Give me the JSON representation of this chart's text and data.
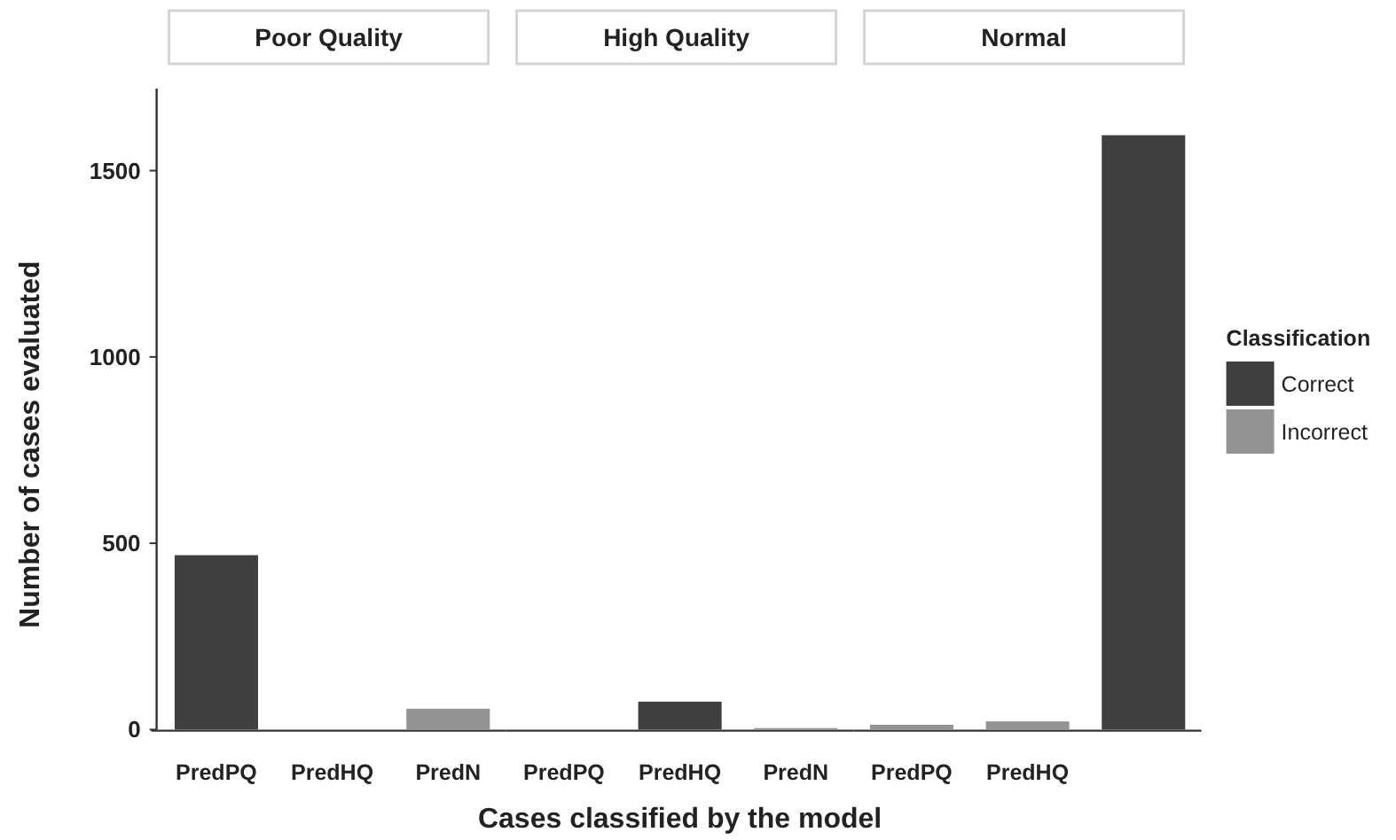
{
  "chart_data": [
    {
      "type": "bar",
      "title": "Poor Quality",
      "ylabel": "Number of cases evaluated",
      "categories": [
        "PredPQ",
        "PredHQ",
        "PredN"
      ],
      "series": [
        {
          "color": "#3f3f3f",
          "values": [
            468,
            null,
            null
          ]
        },
        {
          "color": "#939393",
          "values": [
            null,
            null,
            56
          ]
        }
      ],
      "ylim": [
        0,
        1720
      ],
      "yticks": [
        0,
        500,
        1000,
        1500
      ],
      "grid": false
    },
    {
      "type": "bar",
      "title": "High Quality",
      "xlabel": "Cases classified by the model",
      "categories": [
        "PredPQ",
        "PredHQ",
        "PredN"
      ],
      "series": [
        {
          "color": "#3f3f3f",
          "values": [
            null,
            75,
            null
          ]
        },
        {
          "color": "#939393",
          "values": [
            null,
            null,
            4
          ]
        }
      ],
      "ylim": [
        0,
        1720
      ],
      "tick_labels": "x",
      "grid": false
    },
    {
      "type": "bar",
      "title": "Normal",
      "legend_title": "Classification",
      "legend": "right",
      "categories": [
        "PredPQ",
        "PredHQ",
        null
      ],
      "series": [
        {
          "name": "Correct",
          "color": "#3f3f3f",
          "values": [
            null,
            null,
            1595
          ]
        },
        {
          "name": "Incorrect",
          "color": "#939393",
          "values": [
            13,
            22,
            null
          ]
        }
      ],
      "ylim": [
        0,
        1720
      ],
      "tick_labels": "x",
      "grid": false
    }
  ]
}
